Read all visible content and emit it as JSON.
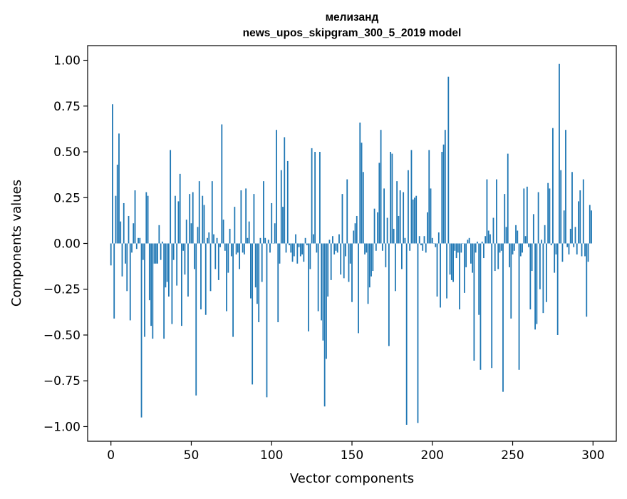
{
  "chart_data": {
    "type": "bar",
    "title": "мелизанд",
    "subtitle": "news_upos_skipgram_300_5_2019 model",
    "xlabel": "Vector components",
    "ylabel": "Components values",
    "xlim": [
      -14.5,
      314.5
    ],
    "ylim": [
      -1.08,
      1.08
    ],
    "xticks": [
      0,
      50,
      100,
      150,
      200,
      250,
      300
    ],
    "xtick_labels": [
      "0",
      "50",
      "100",
      "150",
      "200",
      "250",
      "300"
    ],
    "yticks": [
      1.0,
      0.75,
      0.5,
      0.25,
      0.0,
      -0.25,
      -0.5,
      -0.75,
      -1.0
    ],
    "ytick_labels": [
      "1.00",
      "0.75",
      "0.50",
      "0.25",
      "0.00",
      "−0.25",
      "−0.50",
      "−0.75",
      "−1.00"
    ],
    "bar_color": "#1f77b4",
    "grid": false,
    "values": [
      -0.12,
      0.76,
      -0.41,
      0.26,
      0.43,
      0.6,
      0.12,
      -0.18,
      0.22,
      -0.11,
      -0.26,
      0.15,
      -0.42,
      -0.05,
      0.11,
      0.29,
      -0.03,
      0.03,
      0.03,
      -0.95,
      -0.09,
      -0.51,
      0.28,
      0.26,
      -0.31,
      -0.45,
      -0.52,
      -0.11,
      -0.11,
      -0.11,
      0.1,
      -0.09,
      0.01,
      -0.52,
      -0.24,
      -0.21,
      -0.29,
      0.51,
      -0.44,
      -0.09,
      0.26,
      -0.23,
      0.23,
      0.38,
      -0.45,
      -0.04,
      -0.17,
      0.13,
      -0.29,
      0.27,
      0.11,
      0.28,
      -0.14,
      -0.83,
      0.09,
      0.34,
      -0.36,
      0.26,
      0.21,
      -0.39,
      0.03,
      0.06,
      -0.26,
      0.34,
      0.05,
      -0.14,
      0.03,
      -0.2,
      -0.02,
      0.65,
      0.13,
      -0.04,
      -0.37,
      -0.16,
      0.08,
      -0.07,
      -0.51,
      0.2,
      -0.06,
      -0.05,
      -0.14,
      0.29,
      -0.05,
      -0.06,
      0.3,
      0.03,
      0.12,
      -0.3,
      -0.77,
      0.27,
      -0.24,
      -0.33,
      -0.43,
      0.03,
      -0.21,
      0.34,
      0.03,
      -0.84,
      0.02,
      -0.05,
      0.22,
      0.0,
      0.11,
      0.62,
      -0.43,
      -0.11,
      0.4,
      0.2,
      0.58,
      -0.05,
      0.45,
      -0.01,
      -0.05,
      -0.1,
      -0.07,
      0.05,
      -0.11,
      -0.02,
      -0.07,
      -0.06,
      -0.1,
      0.03,
      -0.01,
      -0.48,
      -0.14,
      0.52,
      0.05,
      0.5,
      -0.05,
      -0.37,
      0.5,
      -0.42,
      -0.53,
      -0.89,
      -0.63,
      -0.29,
      0.02,
      -0.2,
      0.04,
      -0.06,
      -0.04,
      -0.05,
      0.05,
      -0.17,
      0.27,
      -0.19,
      -0.07,
      0.35,
      -0.21,
      -0.11,
      -0.32,
      0.07,
      0.11,
      0.15,
      -0.49,
      0.66,
      0.55,
      0.39,
      -0.06,
      -0.05,
      -0.33,
      -0.24,
      -0.18,
      -0.15,
      0.19,
      -0.04,
      0.17,
      0.44,
      0.62,
      -0.04,
      0.3,
      -0.13,
      0.14,
      -0.56,
      0.5,
      0.49,
      0.08,
      -0.26,
      0.34,
      0.15,
      0.29,
      -0.14,
      0.28,
      0.03,
      -0.99,
      0.4,
      -0.04,
      0.51,
      0.24,
      0.25,
      0.26,
      -0.98,
      0.04,
      -0.01,
      -0.04,
      0.04,
      -0.05,
      0.17,
      0.51,
      0.3,
      0.03,
      0.0,
      -0.02,
      -0.29,
      0.06,
      -0.35,
      0.5,
      0.54,
      0.62,
      -0.3,
      0.91,
      -0.17,
      -0.2,
      -0.21,
      -0.04,
      -0.08,
      -0.05,
      -0.36,
      -0.05,
      0.0,
      -0.27,
      -0.13,
      0.02,
      0.03,
      -0.11,
      -0.16,
      -0.64,
      -0.05,
      0.01,
      -0.39,
      -0.69,
      0.01,
      -0.08,
      0.04,
      0.35,
      0.07,
      0.05,
      -0.68,
      0.14,
      -0.15,
      0.35,
      -0.14,
      -0.05,
      -0.04,
      -0.81,
      0.27,
      0.09,
      0.49,
      -0.13,
      -0.41,
      -0.06,
      -0.04,
      0.1,
      0.07,
      -0.69,
      -0.07,
      -0.05,
      0.3,
      0.04,
      0.31,
      -0.02,
      -0.36,
      -0.15,
      0.16,
      -0.47,
      -0.44,
      0.28,
      -0.25,
      0.02,
      -0.38,
      0.1,
      -0.32,
      0.33,
      0.3,
      -0.01,
      0.63,
      -0.16,
      -0.06,
      -0.5,
      0.98,
      0.4,
      -0.1,
      0.18,
      0.62,
      -0.02,
      -0.06,
      0.08,
      0.39,
      -0.02,
      0.09,
      -0.06,
      0.23,
      0.29,
      -0.07,
      0.35,
      -0.07,
      -0.4,
      -0.1,
      0.21,
      0.18
    ]
  }
}
